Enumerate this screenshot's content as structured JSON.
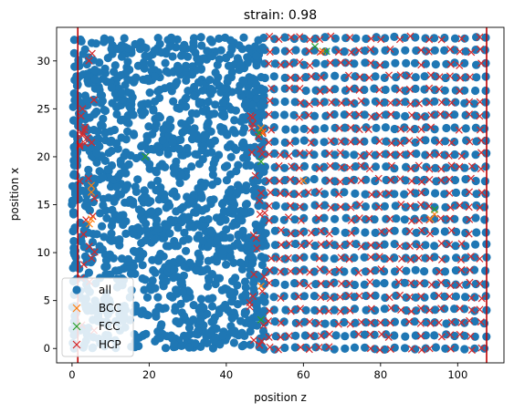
{
  "chart_data": {
    "type": "scatter",
    "title": "strain: 0.98",
    "xlabel": "position z",
    "ylabel": "position x",
    "xlim": [
      -4,
      112
    ],
    "ylim": [
      -1.5,
      33.5
    ],
    "xticks": [
      0,
      20,
      40,
      60,
      80,
      100
    ],
    "yticks": [
      0,
      5,
      10,
      15,
      20,
      25,
      30
    ],
    "vlines": [
      {
        "x": 1.5,
        "color": "#c00000"
      },
      {
        "x": 107.5,
        "color": "#c00000"
      }
    ],
    "legend": {
      "placement": "lower-left"
    },
    "series": [
      {
        "name": "all",
        "marker": "circle",
        "color": "#1f77b4",
        "regions": [
          {
            "x_range": [
              0,
              50
            ],
            "y_range": [
              0,
              32.5
            ],
            "pattern": "dense-disordered"
          },
          {
            "x_range": [
              50,
              108
            ],
            "y_range": [
              0,
              32.5
            ],
            "pattern": "lattice",
            "x_spacing": 2.6,
            "y_spacing": 1.35
          }
        ]
      },
      {
        "name": "BCC",
        "marker": "x",
        "color": "#ff7f0e",
        "points": [
          [
            5,
            17
          ],
          [
            5,
            16.3
          ],
          [
            5,
            13.5
          ],
          [
            4.5,
            13
          ],
          [
            49,
            23
          ],
          [
            49.5,
            22.5
          ],
          [
            49,
            6.5
          ],
          [
            60,
            17.5
          ],
          [
            65,
            31
          ],
          [
            94,
            14
          ],
          [
            93,
            13.5
          ]
        ]
      },
      {
        "name": "FCC",
        "marker": "x",
        "color": "#2ca02c",
        "points": [
          [
            19,
            20
          ],
          [
            48.5,
            22.5
          ],
          [
            49,
            19.5
          ],
          [
            49,
            3
          ],
          [
            63,
            31.5
          ],
          [
            66,
            31
          ],
          [
            94,
            14.5
          ]
        ]
      },
      {
        "name": "HCP",
        "marker": "x",
        "color": "#d62728",
        "points": [],
        "regions": [
          {
            "x_range": [
              2,
              6
            ],
            "y_range": [
              0,
              32.5
            ],
            "pattern": "scattered"
          },
          {
            "x_range": [
              46,
              50
            ],
            "y_range": [
              0,
              25
            ],
            "pattern": "scattered"
          },
          {
            "x_range": [
              50,
              108
            ],
            "y_range": [
              0,
              32.5
            ],
            "pattern": "lattice-dense"
          }
        ]
      }
    ]
  }
}
